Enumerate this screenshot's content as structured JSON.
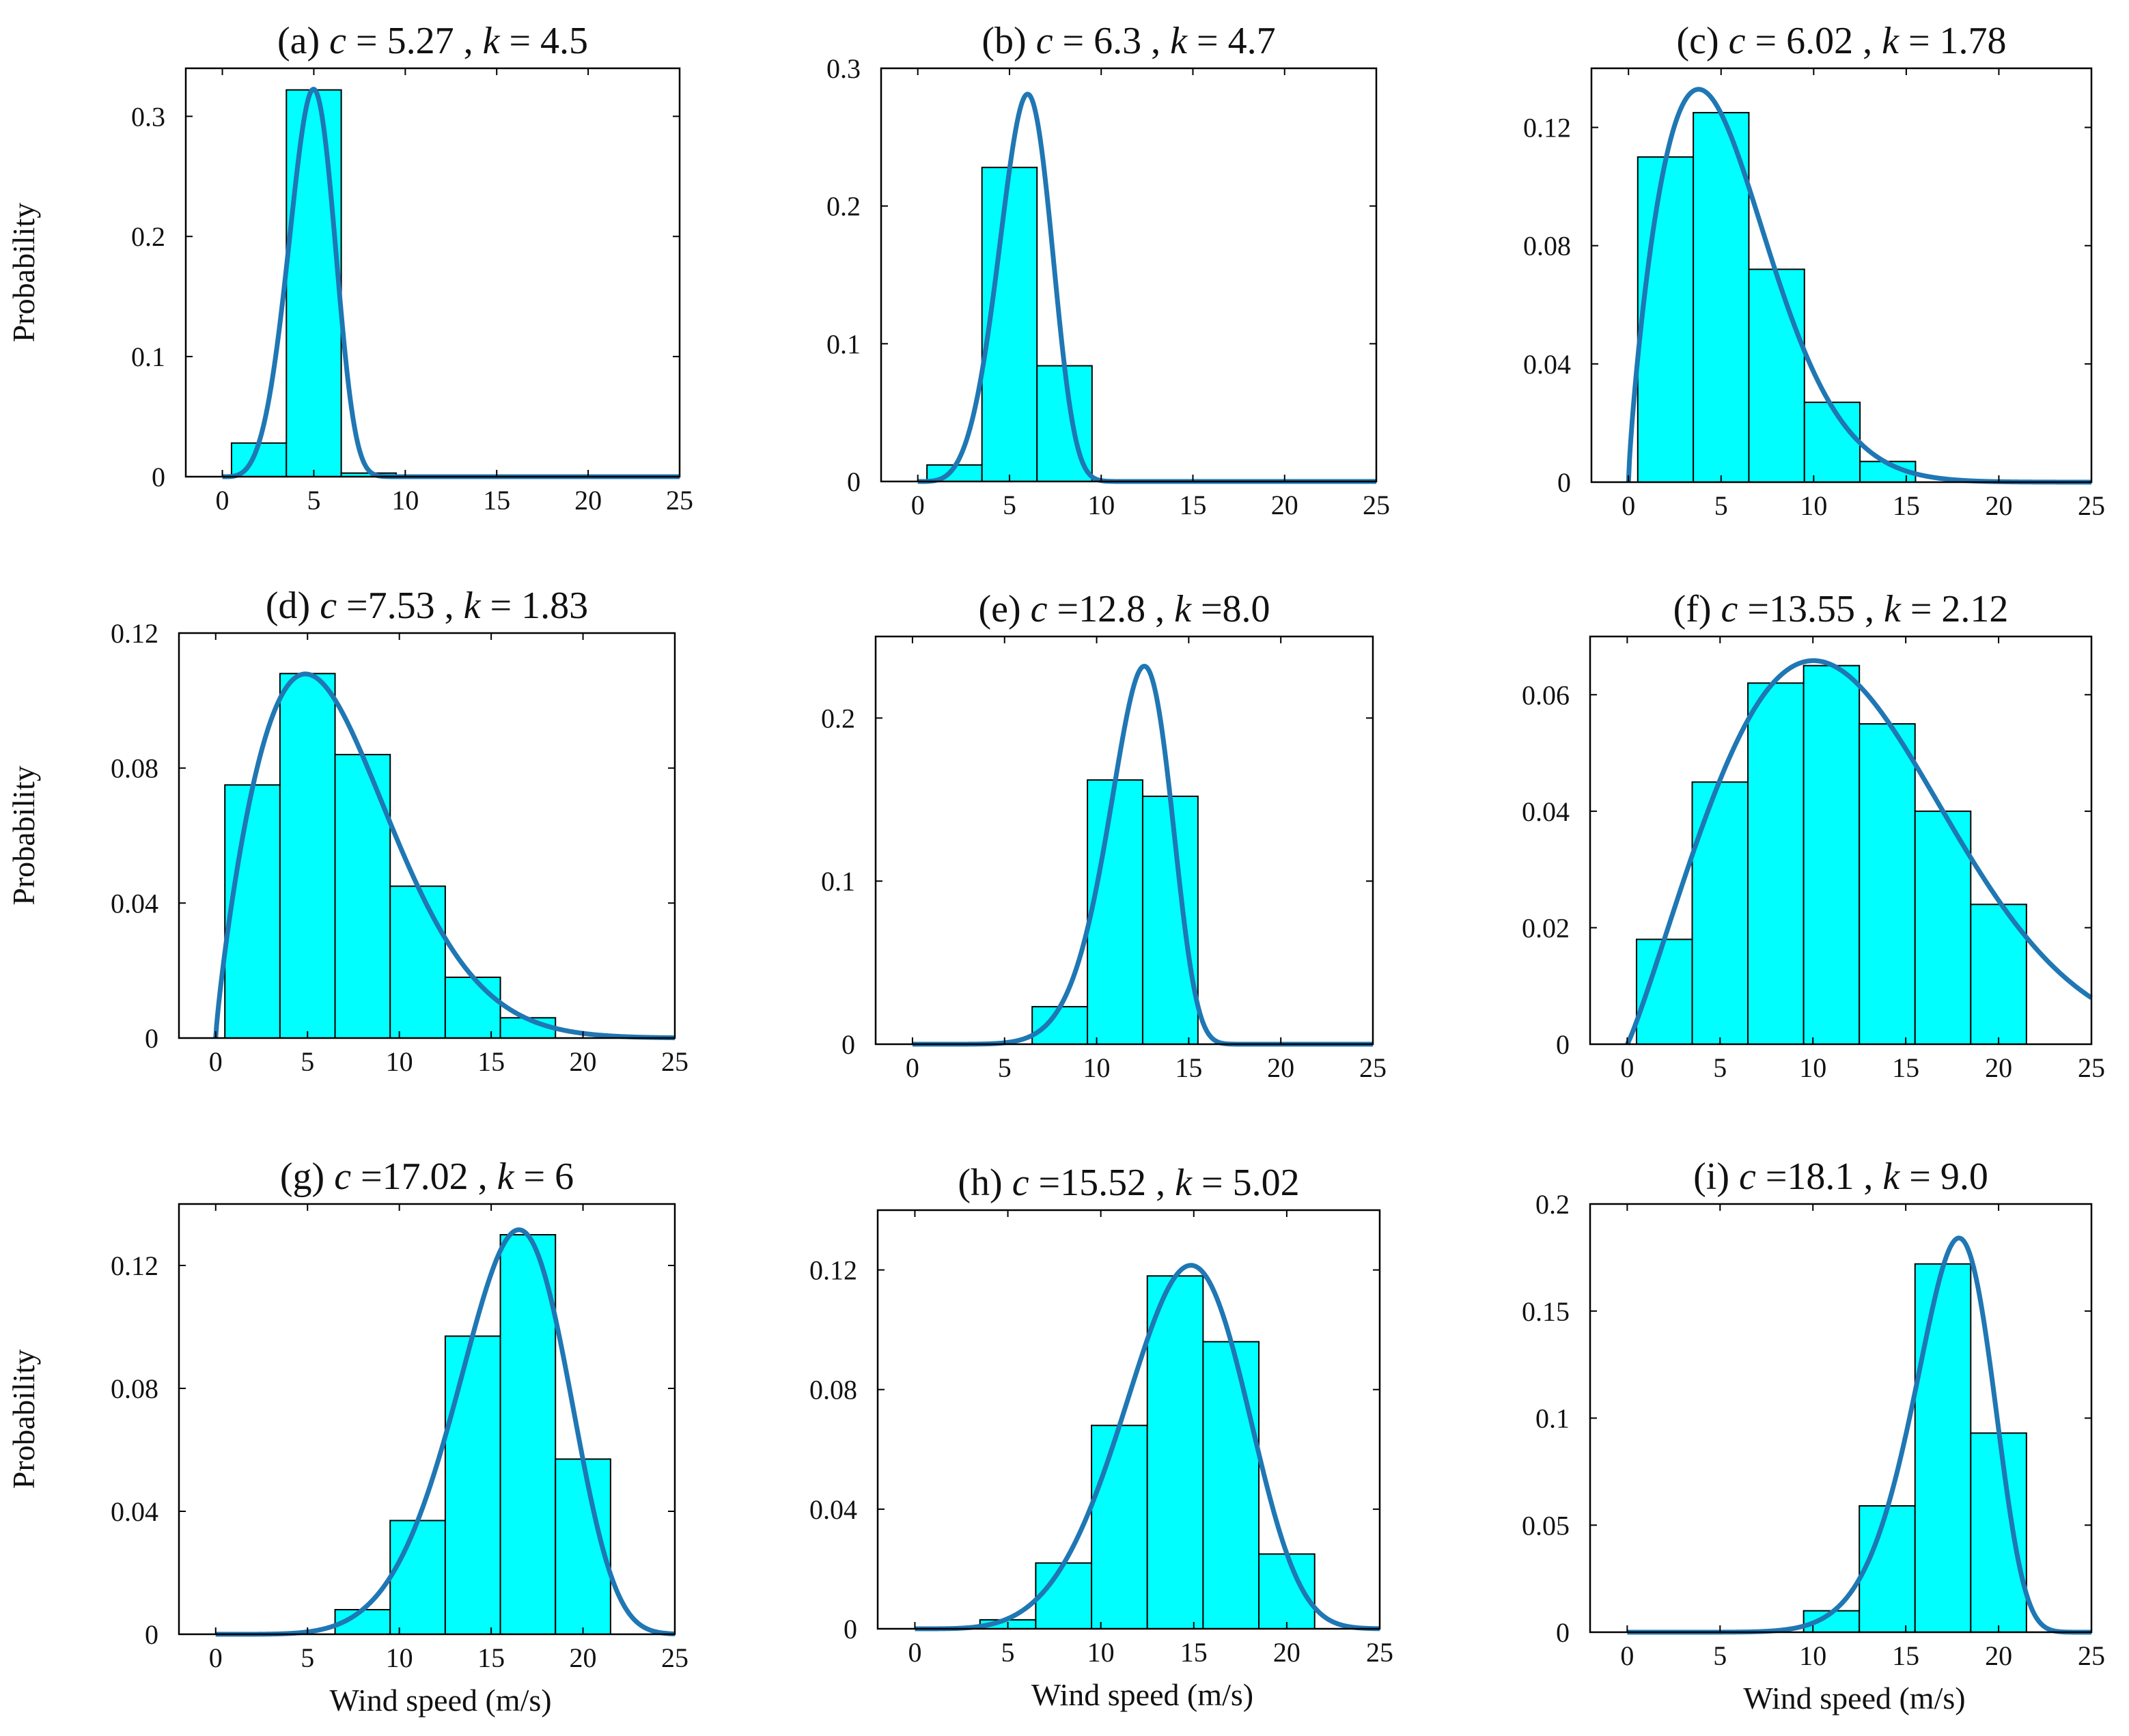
{
  "figure": {
    "x_axis_label": "Wind speed (m/s)",
    "y_axis_label": "Probability",
    "colors": {
      "bar_fill": "#00FFFF",
      "bar_edge": "#000000",
      "curve": "#1F77B4",
      "axes": "#000000"
    }
  },
  "chart_data": [
    {
      "type": "bar",
      "panel": "a",
      "title": "(a) c = 5.27 , k = 4.5",
      "title_parts": {
        "prefix": "(a) ",
        "c_label": "c",
        "c_value": " = 5.27 , ",
        "k_label": "k",
        "k_value": " = 4.5"
      },
      "weibull": {
        "c": 5.27,
        "k": 4.5
      },
      "xlim": [
        -2,
        25
      ],
      "ylim": [
        0,
        0.34
      ],
      "xticks": [
        0,
        5,
        10,
        15,
        20,
        25
      ],
      "yticks": [
        0,
        0.1,
        0.2,
        0.3
      ],
      "ytick_labels": [
        "0",
        "0.1",
        "0.2",
        "0.3"
      ],
      "bin_edges": [
        0.5,
        3.5,
        6.5,
        9.5
      ],
      "values": [
        0.028,
        0.322,
        0.003
      ],
      "show_xlabel": false,
      "show_ylabel": true
    },
    {
      "type": "bar",
      "panel": "b",
      "title": "(b) c = 6.3 , k = 4.7",
      "title_parts": {
        "prefix": "(b) ",
        "c_label": "c",
        "c_value": " = 6.3 , ",
        "k_label": "k",
        "k_value": " = 4.7"
      },
      "weibull": {
        "c": 6.3,
        "k": 4.7
      },
      "xlim": [
        -2,
        25
      ],
      "ylim": [
        0,
        0.3
      ],
      "xticks": [
        0,
        5,
        10,
        15,
        20,
        25
      ],
      "yticks": [
        0,
        0.1,
        0.2,
        0.3
      ],
      "ytick_labels": [
        "0",
        "0.1",
        "0.2",
        "0.3"
      ],
      "bin_edges": [
        0.5,
        3.5,
        6.5,
        9.5
      ],
      "values": [
        0.012,
        0.228,
        0.084
      ],
      "show_xlabel": false,
      "show_ylabel": false
    },
    {
      "type": "bar",
      "panel": "c",
      "title": "(c) c = 6.02 , k = 1.78",
      "title_parts": {
        "prefix": "(c) ",
        "c_label": "c",
        "c_value": " = 6.02 , ",
        "k_label": "k",
        "k_value": " = 1.78"
      },
      "weibull": {
        "c": 6.02,
        "k": 1.78
      },
      "xlim": [
        -2,
        25
      ],
      "ylim": [
        0,
        0.14
      ],
      "xticks": [
        0,
        5,
        10,
        15,
        20,
        25
      ],
      "yticks": [
        0,
        0.04,
        0.08,
        0.12
      ],
      "ytick_labels": [
        "0",
        "0.04",
        "0.08",
        "0.12"
      ],
      "bin_edges": [
        0.5,
        3.5,
        6.5,
        9.5,
        12.5,
        15.5
      ],
      "values": [
        0.11,
        0.125,
        0.072,
        0.027,
        0.007
      ],
      "show_xlabel": false,
      "show_ylabel": false
    },
    {
      "type": "bar",
      "panel": "d",
      "title": "(d) c =7.53 , k = 1.83",
      "title_parts": {
        "prefix": "(d) ",
        "c_label": "c",
        "c_value": " =7.53 , ",
        "k_label": "k",
        "k_value": " = 1.83"
      },
      "weibull": {
        "c": 7.53,
        "k": 1.83
      },
      "xlim": [
        -2,
        25
      ],
      "ylim": [
        0,
        0.12
      ],
      "xticks": [
        0,
        5,
        10,
        15,
        20,
        25
      ],
      "yticks": [
        0,
        0.04,
        0.08,
        0.12
      ],
      "ytick_labels": [
        "0",
        "0.04",
        "0.08",
        "0.12"
      ],
      "bin_edges": [
        0.5,
        3.5,
        6.5,
        9.5,
        12.5,
        15.5,
        18.5
      ],
      "values": [
        0.075,
        0.108,
        0.084,
        0.045,
        0.018,
        0.006
      ],
      "show_xlabel": false,
      "show_ylabel": true
    },
    {
      "type": "bar",
      "panel": "e",
      "title": "(e) c =12.8 , k =8.0",
      "title_parts": {
        "prefix": "(e) ",
        "c_label": "c",
        "c_value": " =12.8 , ",
        "k_label": "k",
        "k_value": " =8.0"
      },
      "weibull": {
        "c": 12.8,
        "k": 8.0
      },
      "xlim": [
        -2,
        25
      ],
      "ylim": [
        0,
        0.25
      ],
      "xticks": [
        0,
        5,
        10,
        15,
        20,
        25
      ],
      "yticks": [
        0,
        0.1,
        0.2
      ],
      "ytick_labels": [
        "0",
        "0.1",
        "0.2"
      ],
      "bin_edges": [
        6.5,
        9.5,
        12.5,
        15.5
      ],
      "values": [
        0.023,
        0.162,
        0.152
      ],
      "show_xlabel": false,
      "show_ylabel": false
    },
    {
      "type": "bar",
      "panel": "f",
      "title": "(f) c =13.55 , k = 2.12",
      "title_parts": {
        "prefix": "(f) ",
        "c_label": "c",
        "c_value": " =13.55 , ",
        "k_label": "k",
        "k_value": " = 2.12"
      },
      "weibull": {
        "c": 13.55,
        "k": 2.12
      },
      "xlim": [
        -2,
        25
      ],
      "ylim": [
        0,
        0.07
      ],
      "xticks": [
        0,
        5,
        10,
        15,
        20,
        25
      ],
      "yticks": [
        0,
        0.02,
        0.04,
        0.06
      ],
      "ytick_labels": [
        "0",
        "0.02",
        "0.04",
        "0.06"
      ],
      "bin_edges": [
        0.5,
        3.5,
        6.5,
        9.5,
        12.5,
        15.5,
        18.5,
        21.5
      ],
      "values": [
        0.018,
        0.045,
        0.062,
        0.065,
        0.055,
        0.04,
        0.024
      ],
      "show_xlabel": false,
      "show_ylabel": false
    },
    {
      "type": "bar",
      "panel": "g",
      "title": "(g) c =17.02 , k = 6",
      "title_parts": {
        "prefix": "(g) ",
        "c_label": "c",
        "c_value": " =17.02 , ",
        "k_label": "k",
        "k_value": " = 6"
      },
      "weibull": {
        "c": 17.02,
        "k": 6
      },
      "xlim": [
        -2,
        25
      ],
      "ylim": [
        0,
        0.14
      ],
      "xticks": [
        0,
        5,
        10,
        15,
        20,
        25
      ],
      "yticks": [
        0,
        0.04,
        0.08,
        0.12
      ],
      "ytick_labels": [
        "0",
        "0.04",
        "0.08",
        "0.12"
      ],
      "bin_edges": [
        6.5,
        9.5,
        12.5,
        15.5,
        18.5,
        21.5
      ],
      "values": [
        0.008,
        0.037,
        0.097,
        0.13,
        0.057
      ],
      "show_xlabel": true,
      "show_ylabel": true
    },
    {
      "type": "bar",
      "panel": "h",
      "title": "(h) c =15.52 , k = 5.02",
      "title_parts": {
        "prefix": "(h) ",
        "c_label": "c",
        "c_value": " =15.52 , ",
        "k_label": "k",
        "k_value": " = 5.02"
      },
      "weibull": {
        "c": 15.52,
        "k": 5.02
      },
      "xlim": [
        -2,
        25
      ],
      "ylim": [
        0,
        0.14
      ],
      "xticks": [
        0,
        5,
        10,
        15,
        20,
        25
      ],
      "yticks": [
        0,
        0.04,
        0.08,
        0.12
      ],
      "ytick_labels": [
        "0",
        "0.04",
        "0.08",
        "0.12"
      ],
      "bin_edges": [
        3.5,
        6.5,
        9.5,
        12.5,
        15.5,
        18.5,
        21.5
      ],
      "values": [
        0.003,
        0.022,
        0.068,
        0.118,
        0.096,
        0.025
      ],
      "show_xlabel": true,
      "show_ylabel": false
    },
    {
      "type": "bar",
      "panel": "i",
      "title": "(i) c =18.1 , k = 9.0",
      "title_parts": {
        "prefix": "(i) ",
        "c_label": "c",
        "c_value": " =18.1 , ",
        "k_label": "k",
        "k_value": " = 9.0"
      },
      "weibull": {
        "c": 18.1,
        "k": 9.0
      },
      "xlim": [
        -2,
        25
      ],
      "ylim": [
        0,
        0.2
      ],
      "xticks": [
        0,
        5,
        10,
        15,
        20,
        25
      ],
      "yticks": [
        0,
        0.05,
        0.1,
        0.15,
        0.2
      ],
      "ytick_labels": [
        "0",
        "0.05",
        "0.1",
        "0.15",
        "0.2"
      ],
      "bin_edges": [
        9.5,
        12.5,
        15.5,
        18.5,
        21.5
      ],
      "values": [
        0.01,
        0.059,
        0.172,
        0.093
      ],
      "show_xlabel": true,
      "show_ylabel": false
    }
  ]
}
